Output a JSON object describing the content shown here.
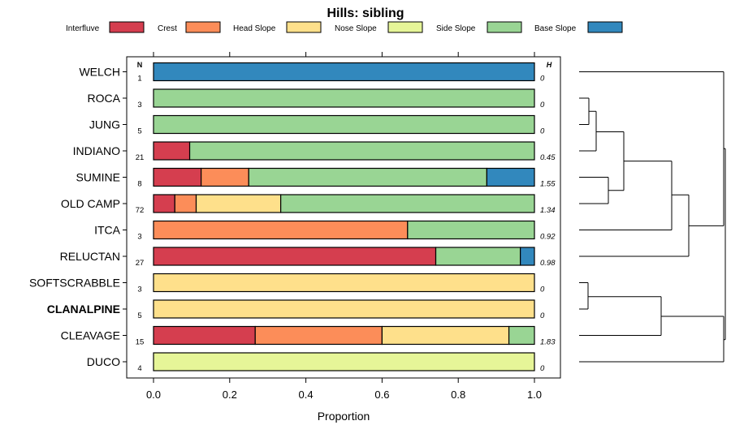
{
  "chart_data": {
    "type": "bar",
    "stacked": true,
    "orientation": "horizontal",
    "title": "Hills: sibling",
    "xlabel": "Proportion",
    "xlim": [
      0,
      1
    ],
    "xticks": [
      "0.0",
      "0.2",
      "0.4",
      "0.6",
      "0.8",
      "1.0"
    ],
    "n_header": "N",
    "h_header": "H",
    "legend": [
      {
        "name": "Interfluve",
        "color": "#D53E4F"
      },
      {
        "name": "Crest",
        "color": "#FC8D59"
      },
      {
        "name": "Head Slope",
        "color": "#FEE08B"
      },
      {
        "name": "Nose Slope",
        "color": "#E6F598"
      },
      {
        "name": "Side Slope",
        "color": "#99D594"
      },
      {
        "name": "Base Slope",
        "color": "#3288BD"
      }
    ],
    "rows": [
      {
        "name": "WELCH",
        "n": "1",
        "h": "0",
        "bold": false,
        "values": [
          0,
          0,
          0,
          0,
          0,
          1.0
        ]
      },
      {
        "name": "ROCA",
        "n": "3",
        "h": "0",
        "bold": false,
        "values": [
          0,
          0,
          0,
          0,
          1.0,
          0
        ]
      },
      {
        "name": "JUNG",
        "n": "5",
        "h": "0",
        "bold": false,
        "values": [
          0,
          0,
          0,
          0,
          1.0,
          0
        ]
      },
      {
        "name": "INDIANO",
        "n": "21",
        "h": "0.45",
        "bold": false,
        "values": [
          0.095,
          0,
          0,
          0,
          0.905,
          0
        ]
      },
      {
        "name": "SUMINE",
        "n": "8",
        "h": "1.55",
        "bold": false,
        "values": [
          0.125,
          0.125,
          0,
          0,
          0.625,
          0.125
        ]
      },
      {
        "name": "OLD CAMP",
        "n": "72",
        "h": "1.34",
        "bold": false,
        "values": [
          0.056,
          0.056,
          0.222,
          0,
          0.666,
          0
        ]
      },
      {
        "name": "ITCA",
        "n": "3",
        "h": "0.92",
        "bold": false,
        "values": [
          0,
          0.667,
          0,
          0,
          0.333,
          0
        ]
      },
      {
        "name": "RELUCTAN",
        "n": "27",
        "h": "0.98",
        "bold": false,
        "values": [
          0.741,
          0,
          0,
          0,
          0.222,
          0.037
        ]
      },
      {
        "name": "SOFTSCRABBLE",
        "n": "3",
        "h": "0",
        "bold": false,
        "values": [
          0,
          0,
          1.0,
          0,
          0,
          0
        ]
      },
      {
        "name": "CLANALPINE",
        "n": "5",
        "h": "0",
        "bold": true,
        "values": [
          0,
          0,
          1.0,
          0,
          0,
          0
        ]
      },
      {
        "name": "CLEAVAGE",
        "n": "15",
        "h": "1.83",
        "bold": false,
        "values": [
          0.267,
          0.333,
          0.333,
          0,
          0.067,
          0
        ]
      },
      {
        "name": "DUCO",
        "n": "4",
        "h": "0",
        "bold": false,
        "values": [
          0,
          0,
          0,
          1.0,
          0,
          0
        ]
      }
    ],
    "dendrogram": {
      "type": "hierarchical-clustering",
      "leaf_order": [
        "WELCH",
        "ROCA",
        "JUNG",
        "INDIANO",
        "SUMINE",
        "OLD CAMP",
        "ITCA",
        "RELUCTAN",
        "SOFTSCRABBLE",
        "CLANALPINE",
        "CLEAVAGE",
        "DUCO"
      ],
      "merges": [
        {
          "children": [
            "ROCA",
            "JUNG"
          ],
          "height": 0.1
        },
        {
          "children": [
            "ROCA+JUNG",
            "INDIANO"
          ],
          "height": 0.12
        },
        {
          "children": [
            "SUMINE",
            "OLD CAMP"
          ],
          "height": 0.2
        },
        {
          "children": [
            "ROCA+JUNG+INDIANO",
            "SUMINE+OLD CAMP"
          ],
          "height": 0.3
        },
        {
          "children": [
            "SOFTSCRABBLE",
            "CLANALPINE"
          ],
          "height": 0.07
        },
        {
          "children": [
            "SOFTSCRABBLE+CLANALPINE",
            "CLEAVAGE"
          ],
          "height": 0.5
        },
        {
          "children": [
            "ROCA..OLD CAMP",
            "ITCA"
          ],
          "height": 0.65
        },
        {
          "children": [
            "ROCA..ITCA",
            "RELUCTAN"
          ],
          "height": 0.74
        },
        {
          "children": [
            "ROCA..RELUCTAN",
            "WELCH"
          ],
          "height": 0.98
        },
        {
          "children": [
            "SOFTSCRABBLE..CLEAVAGE",
            "DUCO"
          ],
          "height": 0.98
        },
        {
          "children": [
            "left-cluster",
            "right-cluster"
          ],
          "height": 1.0
        }
      ]
    }
  }
}
